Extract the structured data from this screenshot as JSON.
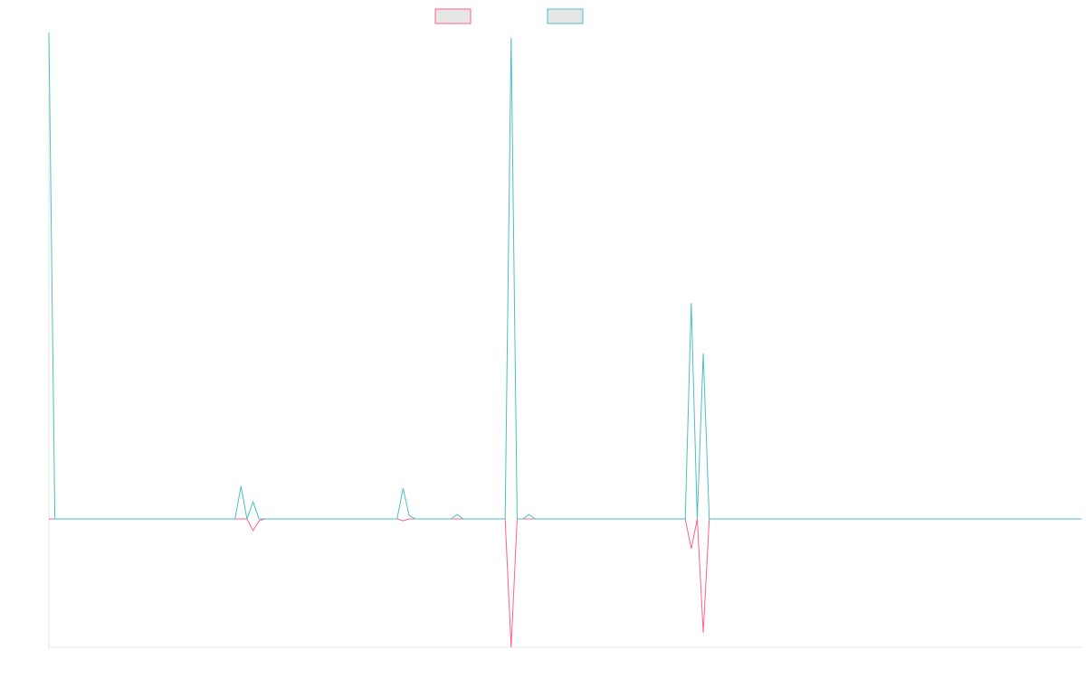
{
  "chart_data": {
    "type": "line",
    "xlim": [
      0,
      172
    ],
    "ylim": [
      -26.4,
      100
    ],
    "grid": false,
    "legend": "top",
    "series": [
      {
        "color": "#ff6384",
        "x": [
          0,
          33,
          34,
          35,
          36,
          58,
          59,
          60,
          76,
          77,
          78,
          106,
          107,
          108,
          109,
          110,
          172
        ],
        "values": [
          0,
          0,
          -2.4,
          -0.4,
          0,
          0,
          -0.4,
          0,
          0,
          -26.4,
          0,
          0,
          -6.1,
          0,
          -23.4,
          0,
          0
        ]
      },
      {
        "color": "#4bc0c0",
        "x": [
          0,
          1,
          31,
          32,
          33,
          34,
          35,
          58,
          59,
          60,
          61,
          67,
          68,
          69,
          76,
          77,
          78,
          79,
          80,
          81,
          106,
          107,
          108,
          109,
          110,
          172
        ],
        "values": [
          100,
          0,
          0,
          6.7,
          0,
          3.5,
          0,
          0,
          6.3,
          0.7,
          0,
          0,
          0.9,
          0,
          0,
          98.9,
          0,
          0,
          0.9,
          0,
          0,
          44.4,
          0,
          34,
          0,
          0
        ]
      }
    ]
  }
}
